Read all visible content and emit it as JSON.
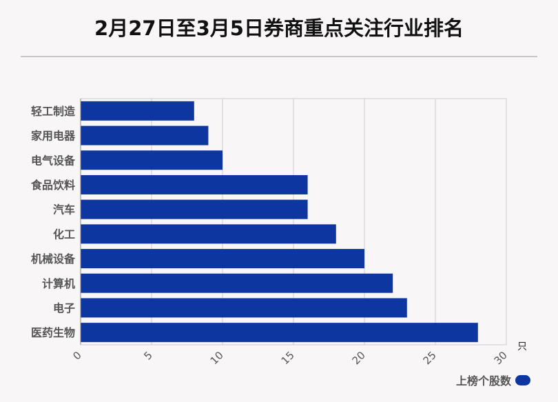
{
  "title": "2月27日至3月5日券商重点关注行业排名",
  "chart_data": {
    "type": "bar",
    "orientation": "horizontal",
    "categories": [
      "轻工制造",
      "家用电器",
      "电气设备",
      "食品饮料",
      "汽车",
      "化工",
      "机械设备",
      "计算机",
      "电子",
      "医药生物"
    ],
    "series": [
      {
        "name": "上榜个股数",
        "values": [
          8,
          9,
          10,
          16,
          16,
          18,
          20,
          22,
          23,
          28
        ],
        "color": "#0e36a0"
      }
    ],
    "xlim": [
      0,
      30
    ],
    "xticks": [
      "0",
      "5",
      "10",
      "15",
      "20",
      "25",
      "30"
    ],
    "unit": "只",
    "grid": true,
    "legend_position": "bottom-right"
  }
}
